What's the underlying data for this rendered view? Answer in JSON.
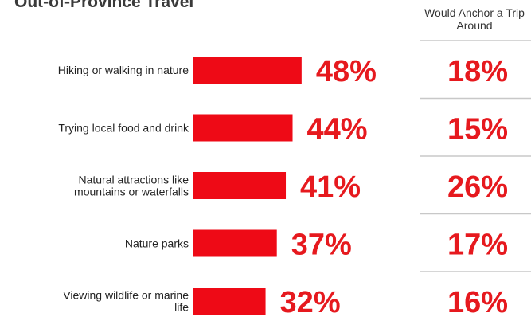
{
  "chart_data": {
    "type": "bar",
    "title": "Out-of-Province Travel",
    "categories": [
      "Hiking or walking in nature",
      "Trying local food and drink",
      "Natural attractions like mountains or waterfalls",
      "Nature parks",
      "Viewing wildlife or marine life"
    ],
    "category_lines": [
      [
        "Hiking or walking in nature"
      ],
      [
        "Trying local food and drink"
      ],
      [
        "Natural attractions like",
        "mountains or waterfalls"
      ],
      [
        "Nature parks"
      ],
      [
        "Viewing wildlife or marine",
        "life"
      ]
    ],
    "series": [
      {
        "values": [
          48,
          44,
          41,
          37,
          32
        ],
        "labels": [
          "48%",
          "44%",
          "41%",
          "37%",
          "32%"
        ]
      }
    ],
    "anchor_column": {
      "header": "Would Anchor a Trip Around",
      "values": [
        18,
        15,
        26,
        17,
        16
      ],
      "labels": [
        "18%",
        "15%",
        "26%",
        "17%",
        "16%"
      ]
    },
    "value_unit": "%",
    "colors": {
      "bar": "#ee0a16",
      "value_text": "#e6191e",
      "divider": "#c8c8c8",
      "category_text": "#222222"
    }
  }
}
